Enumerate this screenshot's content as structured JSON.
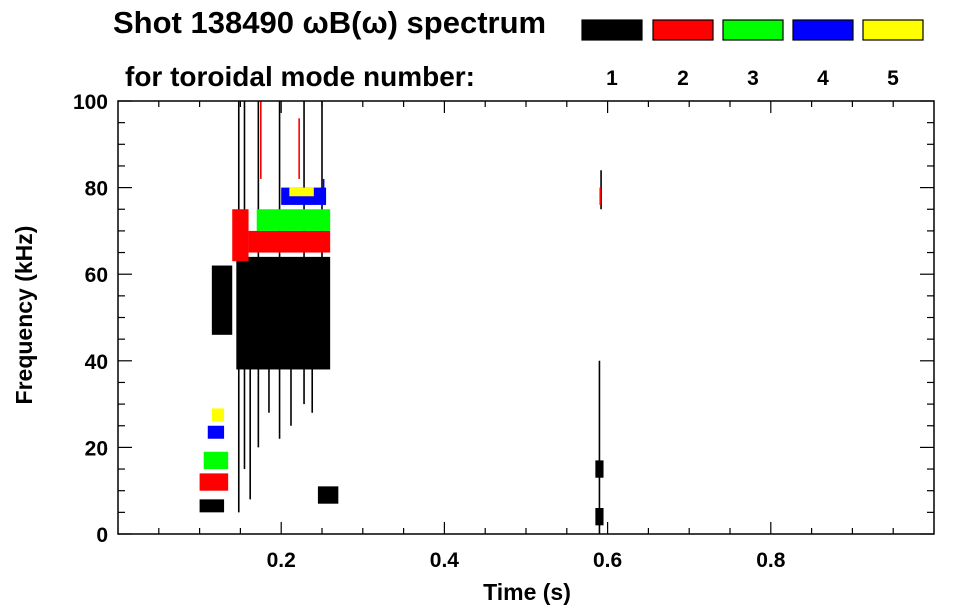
{
  "chart_data": {
    "type": "heatmap",
    "title": "Shot 138490 ωB(ω) spectrum",
    "subtitle": "for toroidal mode number:",
    "xlabel": "Time (s)",
    "ylabel": "Frequency (kHz)",
    "xlim": [
      0.0,
      1.0
    ],
    "ylim": [
      0,
      100
    ],
    "x_ticks": [
      0.2,
      0.4,
      0.6,
      0.8
    ],
    "x_tick_labels": [
      "0.2",
      "0.4",
      "0.6",
      "0.8"
    ],
    "y_ticks": [
      0,
      20,
      40,
      60,
      80,
      100
    ],
    "y_tick_labels": [
      "0",
      "20",
      "40",
      "60",
      "80",
      "100"
    ],
    "legend_position": "top-right",
    "series": [
      {
        "name": "1",
        "color": "#000000",
        "bands": [
          {
            "t": [
              0.1,
              0.13
            ],
            "f": [
              5,
              8
            ]
          },
          {
            "t": [
              0.145,
              0.26
            ],
            "f": [
              38,
              64
            ]
          },
          {
            "t": [
              0.115,
              0.14
            ],
            "f": [
              46,
              62
            ]
          },
          {
            "t": [
              0.245,
              0.27
            ],
            "f": [
              7,
              11
            ]
          },
          {
            "t": [
              0.585,
              0.595
            ],
            "f": [
              13,
              17
            ]
          },
          {
            "t": [
              0.585,
              0.595
            ],
            "f": [
              2,
              6
            ]
          }
        ],
        "spikes": [
          {
            "t": 0.148,
            "f": [
              5,
              100
            ]
          },
          {
            "t": 0.155,
            "f": [
              15,
              100
            ]
          },
          {
            "t": 0.162,
            "f": [
              8,
              62
            ]
          },
          {
            "t": 0.172,
            "f": [
              20,
              100
            ]
          },
          {
            "t": 0.185,
            "f": [
              28,
              62
            ]
          },
          {
            "t": 0.198,
            "f": [
              22,
              100
            ]
          },
          {
            "t": 0.212,
            "f": [
              25,
              60
            ]
          },
          {
            "t": 0.228,
            "f": [
              30,
              100
            ]
          },
          {
            "t": 0.238,
            "f": [
              28,
              62
            ]
          },
          {
            "t": 0.25,
            "f": [
              40,
              100
            ]
          },
          {
            "t": 0.59,
            "f": [
              0,
              40
            ]
          },
          {
            "t": 0.592,
            "f": [
              75,
              84
            ]
          }
        ]
      },
      {
        "name": "2",
        "color": "#ff0000",
        "bands": [
          {
            "t": [
              0.1,
              0.135
            ],
            "f": [
              10,
              14
            ]
          },
          {
            "t": [
              0.14,
              0.16
            ],
            "f": [
              63,
              75
            ]
          },
          {
            "t": [
              0.16,
              0.26
            ],
            "f": [
              65,
              70
            ]
          }
        ],
        "spikes": [
          {
            "t": 0.175,
            "f": [
              82,
              100
            ]
          },
          {
            "t": 0.222,
            "f": [
              82,
              96
            ]
          },
          {
            "t": 0.591,
            "f": [
              76,
              80
            ]
          }
        ]
      },
      {
        "name": "3",
        "color": "#00ff00",
        "bands": [
          {
            "t": [
              0.105,
              0.135
            ],
            "f": [
              15,
              19
            ]
          },
          {
            "t": [
              0.17,
              0.26
            ],
            "f": [
              70,
              75
            ]
          }
        ],
        "spikes": []
      },
      {
        "name": "4",
        "color": "#0000ff",
        "bands": [
          {
            "t": [
              0.11,
              0.13
            ],
            "f": [
              22,
              25
            ]
          },
          {
            "t": [
              0.2,
              0.255
            ],
            "f": [
              76,
              80
            ]
          }
        ],
        "spikes": [
          {
            "t": 0.252,
            "f": [
              78,
              82
            ]
          }
        ]
      },
      {
        "name": "5",
        "color": "#ffff00",
        "bands": [
          {
            "t": [
              0.115,
              0.13
            ],
            "f": [
              26,
              29
            ]
          },
          {
            "t": [
              0.21,
              0.24
            ],
            "f": [
              78,
              80
            ]
          }
        ],
        "spikes": []
      }
    ]
  }
}
